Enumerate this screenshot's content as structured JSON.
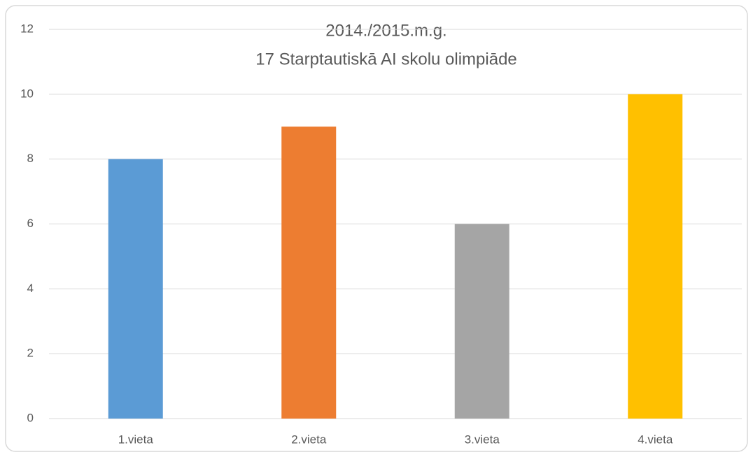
{
  "chart_data": {
    "type": "bar",
    "title": "2014./2015.m.g.",
    "subtitle": "17 Starptautiskā AI skolu olimpiāde",
    "categories": [
      "1.vieta",
      "2.vieta",
      "3.vieta",
      "4.vieta"
    ],
    "values": [
      8,
      9,
      6,
      10
    ],
    "colors": [
      "#5b9bd5",
      "#ed7d31",
      "#a5a5a5",
      "#ffc000"
    ],
    "ylim": [
      0,
      12
    ],
    "yticks": [
      0,
      2,
      4,
      6,
      8,
      10,
      12
    ],
    "grid": true
  }
}
